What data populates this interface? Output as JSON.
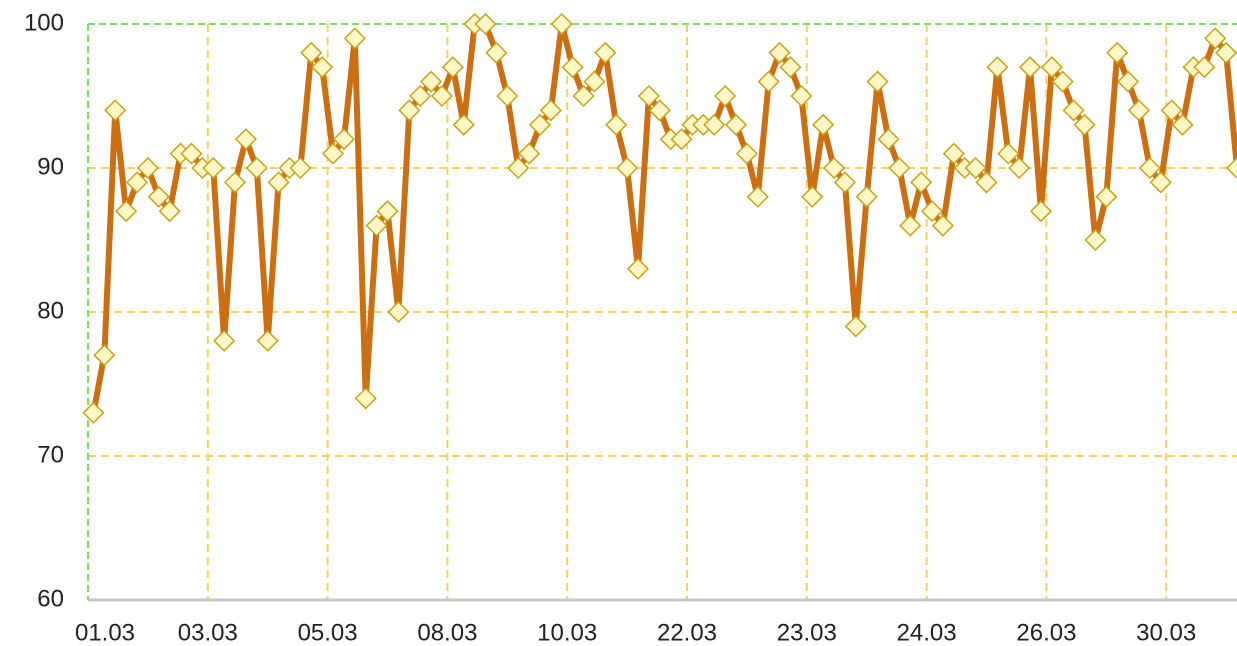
{
  "chart_data": {
    "type": "line",
    "x": [
      0,
      1,
      2,
      3,
      4,
      5,
      6,
      7,
      8,
      9,
      10,
      11,
      12,
      13,
      14,
      15,
      16,
      17,
      18,
      19,
      20,
      21,
      22,
      23,
      24,
      25,
      26,
      27,
      28,
      29,
      30,
      31,
      32,
      33,
      34,
      35,
      36,
      37,
      38,
      39,
      40,
      41,
      42,
      43,
      44,
      45,
      46,
      47,
      48,
      49,
      50,
      51,
      52,
      53,
      54,
      55,
      56,
      57,
      58,
      59,
      60,
      61,
      62,
      63,
      64,
      65,
      66,
      67,
      68,
      69,
      70,
      71,
      72,
      73,
      74,
      75,
      76,
      77,
      78,
      79,
      80,
      81,
      82,
      83,
      84,
      85,
      86,
      87,
      88,
      89,
      90,
      91,
      92,
      93,
      94,
      95,
      96,
      97,
      98,
      99,
      100,
      101,
      102,
      103,
      104,
      105
    ],
    "series": [
      {
        "color": "#cc6f12",
        "marker_fill": "#fff8c6",
        "marker_stroke": "#c9a21a",
        "values": [
          73,
          77,
          94,
          87,
          89,
          90,
          88,
          87,
          91,
          91,
          90,
          90,
          78,
          89,
          92,
          90,
          78,
          89,
          90,
          90,
          98,
          97,
          91,
          92,
          99,
          74,
          86,
          87,
          80,
          94,
          95,
          96,
          95,
          97,
          93,
          100,
          100,
          98,
          95,
          90,
          91,
          93,
          94,
          100,
          97,
          95,
          96,
          98,
          93,
          90,
          83,
          95,
          94,
          92,
          92,
          93,
          93,
          93,
          95,
          93,
          91,
          88,
          96,
          98,
          97,
          95,
          88,
          93,
          90,
          89,
          79,
          88,
          96,
          92,
          90,
          86,
          89,
          87,
          86,
          91,
          90,
          90,
          89,
          97,
          91,
          90,
          97,
          87,
          97,
          96,
          94,
          93,
          85,
          88,
          98,
          96,
          94,
          90,
          89,
          94,
          93,
          97,
          97,
          99,
          98,
          90
        ]
      }
    ],
    "xlim": [
      -0.5,
      105
    ],
    "xticks": [
      {
        "value": -0.5,
        "label": "01.03"
      },
      {
        "value": 10.5,
        "label": "03.03"
      },
      {
        "value": 21.5,
        "label": "05.03"
      },
      {
        "value": 32.5,
        "label": "08.03"
      },
      {
        "value": 43.5,
        "label": "10.03"
      },
      {
        "value": 54.5,
        "label": "22.03"
      },
      {
        "value": 65.5,
        "label": "23.03"
      },
      {
        "value": 76.5,
        "label": "24.03"
      },
      {
        "value": 87.5,
        "label": "26.03"
      },
      {
        "value": 98.5,
        "label": "30.03"
      }
    ],
    "ylim": [
      60,
      100
    ],
    "yticks": [
      60,
      70,
      80,
      90,
      100
    ],
    "grid": true
  }
}
